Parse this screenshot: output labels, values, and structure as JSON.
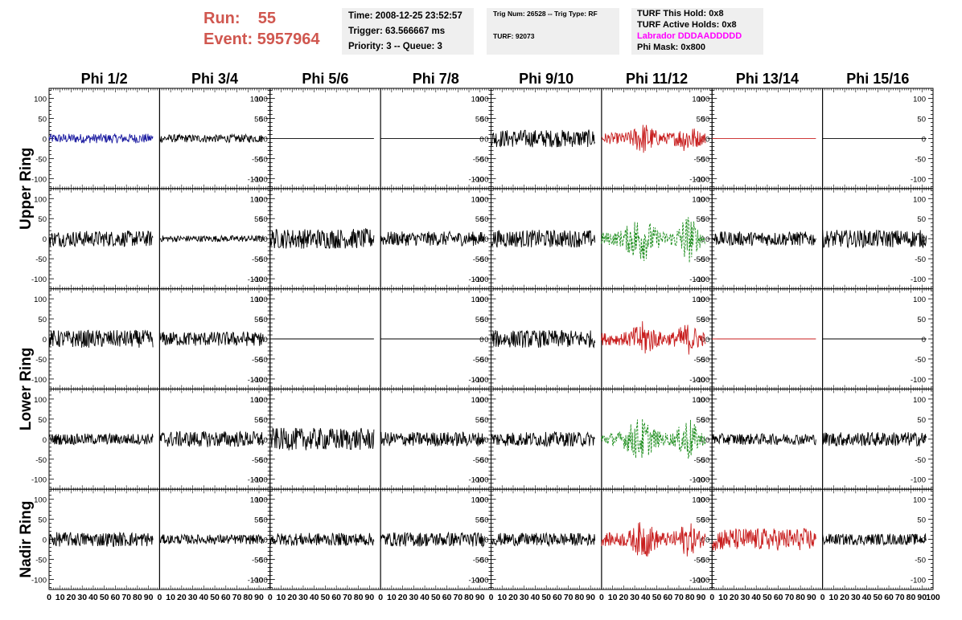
{
  "header": {
    "run_label": "Run:",
    "run_value": "55",
    "event_label": "Event:",
    "event_value": "5957964",
    "time": "Time: 2008-12-25 23:52:57",
    "trigger": "Trigger: 63.566667 ms",
    "priority": "Priority: 3 -- Queue: 3",
    "trig_num": "Trig Num: 26528 -- Trig Type: RF",
    "turf": "TURF: 92073",
    "turf_this_hold": "TURF This Hold: 0x8",
    "turf_active_holds": "TURF Active Holds: 0x8",
    "labrador": "Labrador DDDAADDDDD",
    "phi_mask": "Phi Mask: 0x800"
  },
  "colors": {
    "header_red": "#d0574f",
    "trace_black": "#000000",
    "trace_blue": "#1a1aa0",
    "trace_red": "#c81e1e",
    "trace_green": "#1a8c1a",
    "labrador_magenta": "#ff00ff",
    "box_bg": "#efefef"
  },
  "chart_data": {
    "type": "line",
    "columns": [
      "Phi 1/2",
      "Phi 3/4",
      "Phi 5/6",
      "Phi 7/8",
      "Phi 9/10",
      "Phi 11/12",
      "Phi 13/14",
      "Phi 15/16"
    ],
    "row_groups": [
      {
        "label": "Upper Ring",
        "rows": [
          0,
          1
        ]
      },
      {
        "label": "Lower Ring",
        "rows": [
          2,
          3
        ]
      },
      {
        "label": "Nadir Ring",
        "rows": [
          4
        ]
      }
    ],
    "xlim": [
      0,
      100
    ],
    "ylim": [
      -125,
      125
    ],
    "y_ticks": [
      -100,
      -50,
      0,
      50,
      100
    ],
    "x_ticks": [
      0,
      10,
      20,
      30,
      40,
      50,
      60,
      70,
      80,
      90,
      100
    ],
    "x_tick_labels": [
      "0",
      "10",
      "20",
      "30",
      "40",
      "50",
      "60",
      "70",
      "80",
      "90",
      "100"
    ],
    "signal_length": 94,
    "traces": [
      [
        {
          "amp": 12,
          "color": "blue",
          "style": "solid",
          "env": "flat"
        },
        {
          "amp": 10,
          "color": "black",
          "style": "solid",
          "env": "flat"
        },
        {
          "amp": 0,
          "color": "black",
          "style": "solid",
          "env": "flat"
        },
        {
          "amp": 0,
          "color": "black",
          "style": "solid",
          "env": "flat"
        },
        {
          "amp": 22,
          "color": "black",
          "style": "solid",
          "env": "flat"
        },
        {
          "amp": 40,
          "color": "red",
          "style": "solid",
          "env": "pulse"
        },
        {
          "amp": 0,
          "color": "red",
          "style": "solid",
          "env": "flat"
        },
        {
          "amp": 0,
          "color": "black",
          "style": "solid",
          "env": "flat"
        }
      ],
      [
        {
          "amp": 20,
          "color": "black",
          "style": "solid",
          "env": "flat"
        },
        {
          "amp": 8,
          "color": "black",
          "style": "solid",
          "env": "flat"
        },
        {
          "amp": 25,
          "color": "black",
          "style": "solid",
          "env": "flat"
        },
        {
          "amp": 18,
          "color": "black",
          "style": "solid",
          "env": "flat"
        },
        {
          "amp": 22,
          "color": "black",
          "style": "solid",
          "env": "flat"
        },
        {
          "amp": 55,
          "color": "green",
          "style": "dashed",
          "env": "double"
        },
        {
          "amp": 18,
          "color": "black",
          "style": "solid",
          "env": "flat"
        },
        {
          "amp": 22,
          "color": "black",
          "style": "solid",
          "env": "flat"
        }
      ],
      [
        {
          "amp": 22,
          "color": "black",
          "style": "solid",
          "env": "flat"
        },
        {
          "amp": 18,
          "color": "black",
          "style": "solid",
          "env": "flat"
        },
        {
          "amp": 0,
          "color": "black",
          "style": "solid",
          "env": "flat"
        },
        {
          "amp": 0,
          "color": "black",
          "style": "solid",
          "env": "flat"
        },
        {
          "amp": 22,
          "color": "black",
          "style": "solid",
          "env": "flat"
        },
        {
          "amp": 45,
          "color": "red",
          "style": "solid",
          "env": "pulse"
        },
        {
          "amp": 0,
          "color": "red",
          "style": "solid",
          "env": "flat"
        },
        {
          "amp": 0,
          "color": "black",
          "style": "solid",
          "env": "flat"
        }
      ],
      [
        {
          "amp": 14,
          "color": "black",
          "style": "solid",
          "env": "flat"
        },
        {
          "amp": 20,
          "color": "black",
          "style": "solid",
          "env": "flat"
        },
        {
          "amp": 28,
          "color": "black",
          "style": "solid",
          "env": "flat"
        },
        {
          "amp": 18,
          "color": "black",
          "style": "solid",
          "env": "flat"
        },
        {
          "amp": 18,
          "color": "black",
          "style": "solid",
          "env": "flat"
        },
        {
          "amp": 50,
          "color": "green",
          "style": "dashed",
          "env": "double"
        },
        {
          "amp": 14,
          "color": "black",
          "style": "solid",
          "env": "flat"
        },
        {
          "amp": 18,
          "color": "black",
          "style": "solid",
          "env": "flat"
        }
      ],
      [
        {
          "amp": 18,
          "color": "black",
          "style": "solid",
          "env": "flat"
        },
        {
          "amp": 12,
          "color": "black",
          "style": "solid",
          "env": "flat"
        },
        {
          "amp": 16,
          "color": "black",
          "style": "solid",
          "env": "flat"
        },
        {
          "amp": 18,
          "color": "black",
          "style": "solid",
          "env": "flat"
        },
        {
          "amp": 16,
          "color": "black",
          "style": "solid",
          "env": "flat"
        },
        {
          "amp": 48,
          "color": "red",
          "style": "solid",
          "env": "pulse"
        },
        {
          "amp": 28,
          "color": "red",
          "style": "solid",
          "env": "flat"
        },
        {
          "amp": 14,
          "color": "black",
          "style": "solid",
          "env": "flat"
        }
      ]
    ]
  }
}
